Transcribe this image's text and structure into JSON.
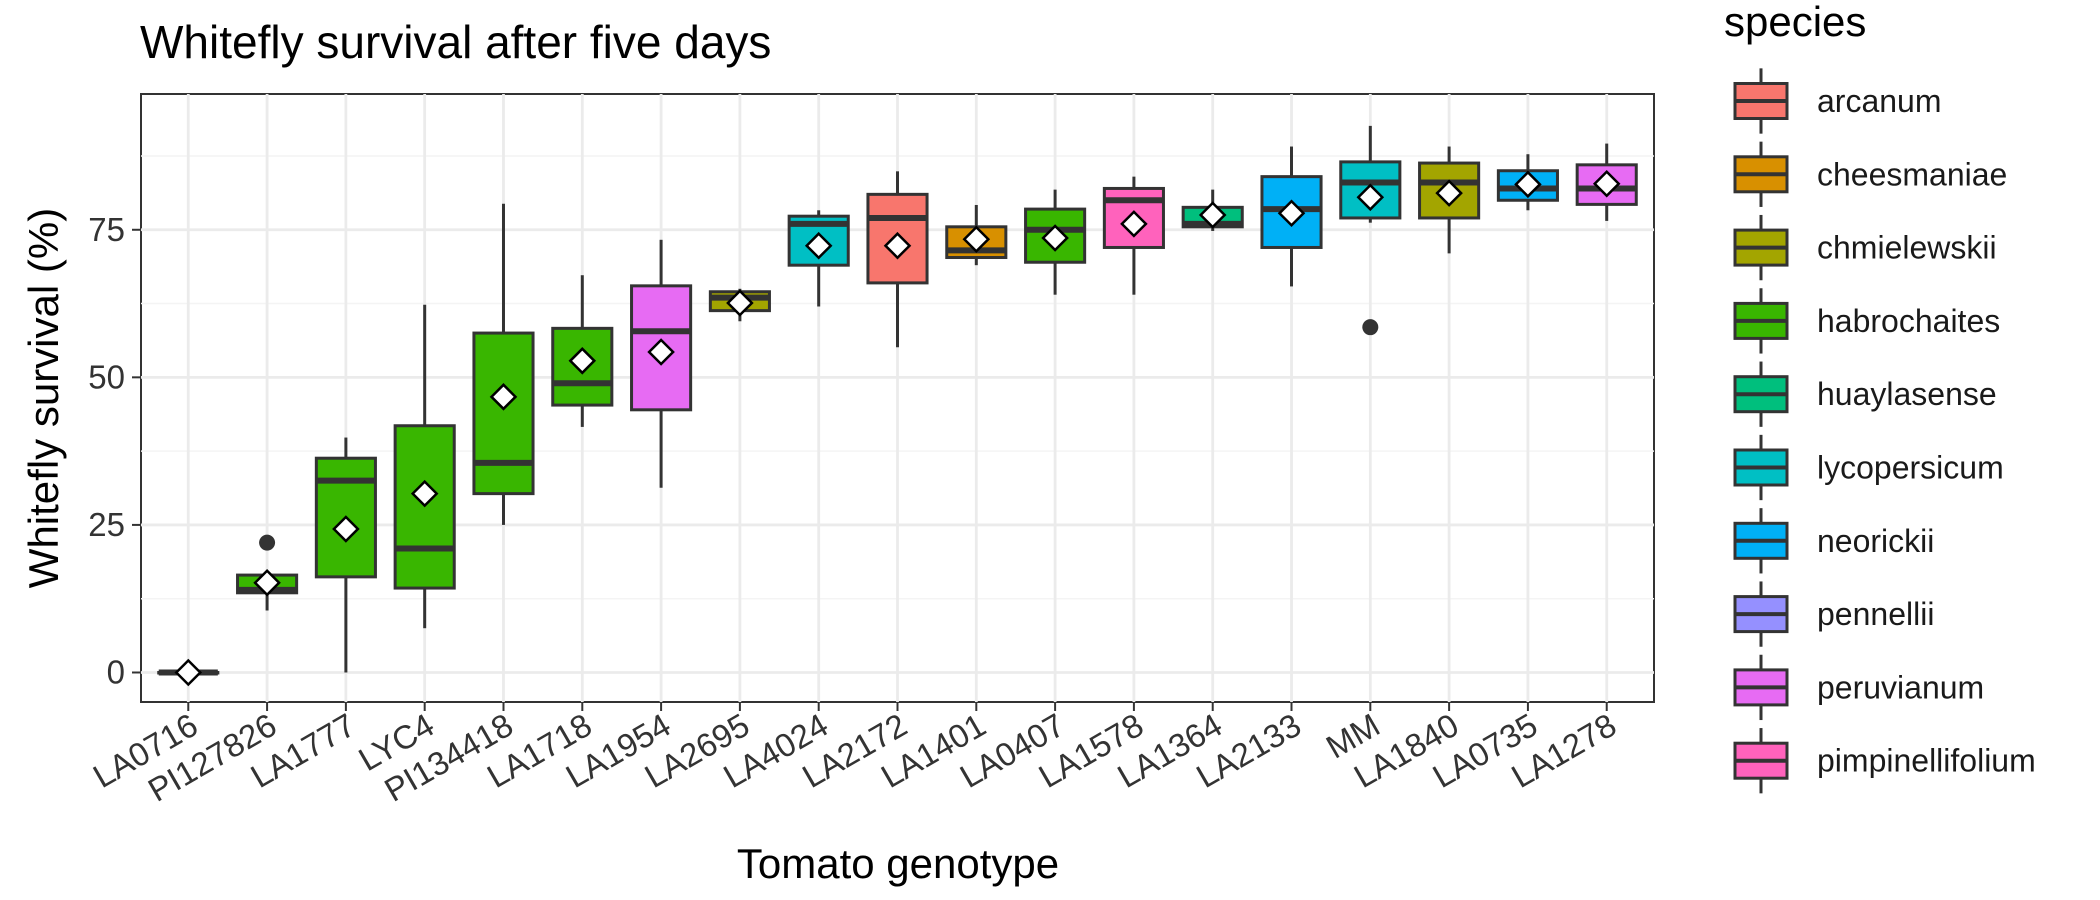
{
  "chart_data": {
    "type": "boxplot",
    "title": "Whitefly survival after five days",
    "xlabel": "Tomato genotype",
    "ylabel": "Whitefly survival (%)",
    "ylim": [
      -5,
      98
    ],
    "yticks": [
      0,
      25,
      50,
      75
    ],
    "grid": true,
    "legend": {
      "title": "species",
      "position": "right",
      "items": [
        {
          "name": "arcanum",
          "color": "#F8766D"
        },
        {
          "name": "cheesmaniae",
          "color": "#D89000"
        },
        {
          "name": "chmielewskii",
          "color": "#A3A500"
        },
        {
          "name": "habrochaites",
          "color": "#39B600"
        },
        {
          "name": "huaylasense",
          "color": "#00BF7D"
        },
        {
          "name": "lycopersicum",
          "color": "#00BFC4"
        },
        {
          "name": "neorickii",
          "color": "#00B0F6"
        },
        {
          "name": "pennellii",
          "color": "#9590FF"
        },
        {
          "name": "peruvianum",
          "color": "#E76BF3"
        },
        {
          "name": "pimpinellifolium",
          "color": "#FF62BC"
        }
      ]
    },
    "boxes": [
      {
        "genotype": "LA0716",
        "species": "habrochaites",
        "whisker_low": 0,
        "q1": 0,
        "median": 0,
        "q3": 0,
        "whisker_high": 0,
        "mean": 0,
        "outliers": []
      },
      {
        "genotype": "PI127826",
        "species": "habrochaites",
        "whisker_low": 10.5,
        "q1": 13.5,
        "median": 14.0,
        "q3": 16.5,
        "whisker_high": 17.0,
        "mean": 15.2,
        "outliers": [
          22.0
        ]
      },
      {
        "genotype": "LA1777",
        "species": "habrochaites",
        "whisker_low": 0,
        "q1": 16.2,
        "median": 32.5,
        "q3": 36.3,
        "whisker_high": 39.8,
        "mean": 24.3,
        "outliers": []
      },
      {
        "genotype": "LYC4",
        "species": "habrochaites",
        "whisker_low": 7.5,
        "q1": 14.3,
        "median": 21.0,
        "q3": 41.8,
        "whisker_high": 62.3,
        "mean": 30.3,
        "outliers": []
      },
      {
        "genotype": "PI134418",
        "species": "habrochaites",
        "whisker_low": 25.0,
        "q1": 30.3,
        "median": 35.5,
        "q3": 57.5,
        "whisker_high": 79.4,
        "mean": 46.7,
        "outliers": []
      },
      {
        "genotype": "LA1718",
        "species": "habrochaites",
        "whisker_low": 41.6,
        "q1": 45.3,
        "median": 49.0,
        "q3": 58.3,
        "whisker_high": 67.3,
        "mean": 52.8,
        "outliers": []
      },
      {
        "genotype": "LA1954",
        "species": "peruvianum",
        "whisker_low": 31.3,
        "q1": 44.5,
        "median": 57.8,
        "q3": 65.5,
        "whisker_high": 73.3,
        "mean": 54.3,
        "outliers": []
      },
      {
        "genotype": "LA2695",
        "species": "chmielewskii",
        "whisker_low": 59.5,
        "q1": 61.3,
        "median": 63.5,
        "q3": 64.5,
        "whisker_high": 65.0,
        "mean": 62.6,
        "outliers": []
      },
      {
        "genotype": "LA4024",
        "species": "lycopersicum",
        "whisker_low": 62.0,
        "q1": 69.0,
        "median": 76.0,
        "q3": 77.3,
        "whisker_high": 78.3,
        "mean": 72.3,
        "outliers": []
      },
      {
        "genotype": "LA2172",
        "species": "arcanum",
        "whisker_low": 55.1,
        "q1": 66.0,
        "median": 77.0,
        "q3": 81.0,
        "whisker_high": 84.9,
        "mean": 72.3,
        "outliers": []
      },
      {
        "genotype": "LA1401",
        "species": "cheesmaniae",
        "whisker_low": 69.0,
        "q1": 70.3,
        "median": 71.5,
        "q3": 75.5,
        "whisker_high": 79.2,
        "mean": 73.4,
        "outliers": []
      },
      {
        "genotype": "LA0407",
        "species": "habrochaites",
        "whisker_low": 64.0,
        "q1": 69.5,
        "median": 75.0,
        "q3": 78.5,
        "whisker_high": 81.8,
        "mean": 73.6,
        "outliers": []
      },
      {
        "genotype": "LA1578",
        "species": "pimpinellifolium",
        "whisker_low": 64.0,
        "q1": 72.0,
        "median": 80.0,
        "q3": 82.0,
        "whisker_high": 84.0,
        "mean": 76.0,
        "outliers": []
      },
      {
        "genotype": "LA1364",
        "species": "huaylasense",
        "whisker_low": 74.8,
        "q1": 75.5,
        "median": 76.0,
        "q3": 78.8,
        "whisker_high": 81.8,
        "mean": 77.5,
        "outliers": []
      },
      {
        "genotype": "LA2133",
        "species": "neorickii",
        "whisker_low": 65.4,
        "q1": 72.0,
        "median": 78.5,
        "q3": 84.0,
        "whisker_high": 89.1,
        "mean": 77.8,
        "outliers": []
      },
      {
        "genotype": "MM",
        "species": "lycopersicum",
        "whisker_low": 76.2,
        "q1": 77.0,
        "median": 83.0,
        "q3": 86.5,
        "whisker_high": 92.6,
        "mean": 80.5,
        "outliers": [
          58.5
        ]
      },
      {
        "genotype": "LA1840",
        "species": "chmielewskii",
        "whisker_low": 71.0,
        "q1": 77.0,
        "median": 83.0,
        "q3": 86.3,
        "whisker_high": 89.1,
        "mean": 81.2,
        "outliers": []
      },
      {
        "genotype": "LA0735",
        "species": "neorickii",
        "whisker_low": 78.3,
        "q1": 80.0,
        "median": 82.0,
        "q3": 85.0,
        "whisker_high": 87.8,
        "mean": 82.7,
        "outliers": []
      },
      {
        "genotype": "LA1278",
        "species": "peruvianum",
        "whisker_low": 76.5,
        "q1": 79.3,
        "median": 82.0,
        "q3": 86.0,
        "whisker_high": 89.6,
        "mean": 82.8,
        "outliers": []
      }
    ]
  }
}
